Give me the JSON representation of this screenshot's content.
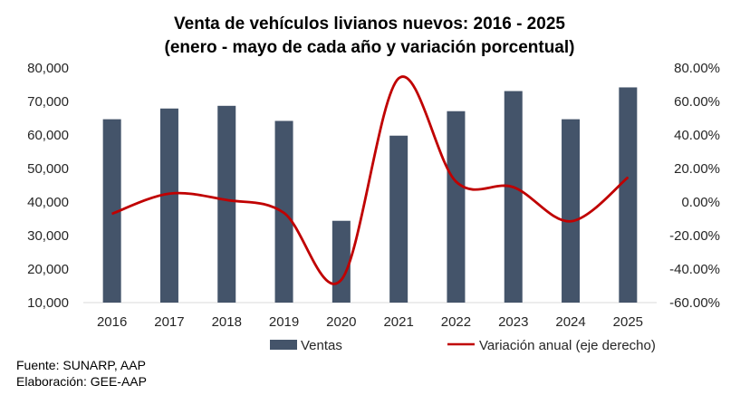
{
  "chart_data": {
    "type": "bar",
    "title_line1": "Venta de vehículos livianos nuevos: 2016 - 2025",
    "title_line2": "(enero - mayo de cada año y variación porcentual)",
    "categories": [
      "2016",
      "2017",
      "2018",
      "2019",
      "2020",
      "2021",
      "2022",
      "2023",
      "2024",
      "2025"
    ],
    "series": [
      {
        "name": "Ventas",
        "type": "bar",
        "color": "#44546A",
        "axis": "left",
        "values": [
          64700,
          67900,
          68700,
          64200,
          34400,
          59800,
          67100,
          73100,
          64700,
          74200
        ]
      },
      {
        "name": "Variación anual (eje derecho)",
        "type": "line",
        "color": "#C00000",
        "axis": "right",
        "values": [
          -7.0,
          5.0,
          1.2,
          -6.5,
          -46.4,
          73.8,
          12.2,
          8.9,
          -11.5,
          14.7
        ]
      }
    ],
    "y_left": {
      "min": 10000,
      "max": 80000,
      "step": 10000,
      "tick_labels": [
        "10,000",
        "20,000",
        "30,000",
        "40,000",
        "50,000",
        "60,000",
        "70,000",
        "80,000"
      ]
    },
    "y_right": {
      "min": -60,
      "max": 80,
      "step": 20,
      "tick_labels": [
        "-60.00%",
        "-40.00%",
        "-20.00%",
        "0.00%",
        "20.00%",
        "40.00%",
        "60.00%",
        "80.00%"
      ]
    },
    "grid": false,
    "legend_position": "bottom"
  },
  "footer": {
    "source": "Fuente: SUNARP, AAP",
    "elaboration": "Elaboración: GEE-AAP"
  }
}
